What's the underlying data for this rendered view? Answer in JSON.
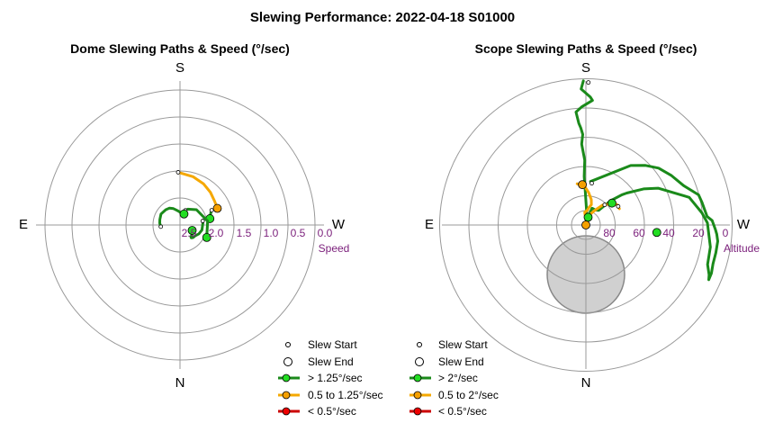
{
  "title": "Slewing Performance: 2022-04-18 S01000",
  "colors": {
    "fast": "#1a8a1a",
    "fast_marker": "#22dd22",
    "medium": "#f5a800",
    "medium_marker": "#f5a000",
    "slow": "#cc0000",
    "slow_marker": "#ee0000",
    "ring": "#999999",
    "tick": "#7b1f7b",
    "zenith": "#d0d0d0"
  },
  "chart_data": [
    {
      "type": "polar-line",
      "title": "Dome Slewing Paths & Speed (°/sec)",
      "cardinals": {
        "top": "S",
        "bottom": "N",
        "left": "E",
        "right": "W"
      },
      "radial_axis": {
        "name": "Speed",
        "range": [
          2.5,
          0.0
        ],
        "ticks": [
          "2.5",
          "2.0",
          "1.5",
          "1.0",
          "0.5",
          "0.0"
        ]
      },
      "legend": {
        "start": "Slew Start",
        "end": "Slew End",
        "fast": "> 1.25°/sec",
        "medium": "0.5 to 1.25°/sec",
        "slow": "< 0.5°/sec"
      },
      "series": [
        {
          "speed": "medium",
          "points": [
            [
              -2,
              1.69
            ],
            [
              15,
              1.74
            ],
            [
              30,
              1.79
            ],
            [
              43,
              1.84
            ],
            [
              56,
              1.89
            ],
            [
              66,
              1.91
            ]
          ]
        },
        {
          "speed": "fast",
          "points": [
            [
              65,
              2.02
            ],
            [
              68,
              2.05
            ],
            [
              73,
              2.08
            ],
            [
              78,
              2.1
            ]
          ]
        },
        {
          "speed": "fast",
          "points": [
            [
              20,
              2.38
            ],
            [
              26,
              2.34
            ],
            [
              47,
              2.25
            ],
            [
              82,
              2.15
            ],
            [
              115,
              2.12
            ]
          ]
        },
        {
          "speed": "fast",
          "points": [
            [
              80,
              2.24
            ],
            [
              84,
              2.24
            ],
            [
              103,
              2.25
            ],
            [
              115,
              2.28
            ],
            [
              125,
              2.32
            ],
            [
              134,
              2.33
            ],
            [
              139,
              2.35
            ],
            [
              137,
              2.37
            ],
            [
              130,
              2.38
            ],
            [
              114,
              2.42
            ]
          ]
        },
        {
          "speed": "fast",
          "points": [
            [
              265,
              2.31
            ],
            [
              275,
              2.29
            ],
            [
              285,
              2.28
            ],
            [
              300,
              2.26
            ],
            [
              317,
              2.28
            ],
            [
              328,
              2.3
            ],
            [
              338,
              2.34
            ],
            [
              346,
              2.38
            ],
            [
              354,
              2.41
            ],
            [
              360,
              2.43
            ],
            [
              380,
              2.45
            ]
          ]
        }
      ]
    },
    {
      "type": "polar-line",
      "title": "Scope Slewing Paths & Speed (°/sec)",
      "cardinals": {
        "top": "S",
        "bottom": "N",
        "left": "E",
        "right": "W"
      },
      "radial_axis": {
        "name": "Altitude",
        "range": [
          90,
          0
        ],
        "ticks": [
          "80",
          "60",
          "40",
          "20",
          "0"
        ]
      },
      "legend": {
        "start": "Slew Start",
        "end": "Slew End",
        "fast": "> 2°/sec",
        "medium": "0.5 to 2°/sec",
        "slow": "< 0.5°/sec"
      },
      "series": [
        {
          "speed": "fast",
          "points": [
            [
              -1,
              1
            ],
            [
              -2,
              6
            ],
            [
              2,
              11
            ],
            [
              3,
              13
            ],
            [
              -2,
              17
            ],
            [
              -5,
              20
            ],
            [
              -4,
              27
            ],
            [
              -3,
              30
            ],
            [
              -2,
              34
            ],
            [
              -3,
              40
            ],
            [
              -1,
              50
            ],
            [
              -2,
              60
            ],
            [
              -1,
              70
            ],
            [
              2,
              80
            ],
            [
              7,
              85
            ]
          ]
        },
        {
          "speed": "fast",
          "points": [
            [
              6,
              63
            ],
            [
              37,
              44
            ],
            [
              45,
              38
            ],
            [
              52,
              33
            ],
            [
              60,
              29
            ],
            [
              68,
              25
            ],
            [
              75,
              18
            ],
            [
              79,
              17
            ],
            [
              83,
              16
            ],
            [
              86,
              15
            ],
            [
              88,
              12
            ],
            [
              92,
              10
            ],
            [
              94,
              9
            ],
            [
              97,
              8
            ],
            [
              102,
              8
            ],
            [
              107,
              8
            ],
            [
              111,
              7
            ],
            [
              114,
              7
            ],
            [
              112,
              8
            ],
            [
              108,
              11
            ],
            [
              100,
              12
            ],
            [
              89,
              15
            ],
            [
              84,
              18
            ],
            [
              80,
              21
            ],
            [
              75,
              24
            ],
            [
              63,
              40
            ],
            [
              58,
              48
            ],
            [
              52,
              58
            ],
            [
              50,
              61
            ],
            [
              46,
              68
            ],
            [
              44,
              73
            ],
            [
              41,
              78
            ],
            [
              33,
              79
            ],
            [
              21,
              79
            ],
            [
              20,
              79
            ],
            [
              12,
              86
            ],
            [
              5,
              87
            ],
            [
              -5,
              89
            ]
          ]
        },
        {
          "speed": "medium",
          "points": [
            [
              -12,
              64
            ],
            [
              -2,
              66
            ],
            [
              5,
              70
            ],
            [
              12,
              74
            ],
            [
              15,
              77
            ],
            [
              10,
              79
            ],
            [
              5,
              81
            ],
            [
              -5,
              82
            ],
            [
              -3,
              86
            ],
            [
              5,
              87
            ],
            [
              14,
              86
            ],
            [
              22,
              83
            ],
            [
              30,
              80
            ],
            [
              40,
              74
            ],
            [
              51,
              69
            ],
            [
              57,
              67
            ],
            [
              64,
              67
            ]
          ]
        },
        {
          "speed": "fast",
          "points": [
            [
              10,
              84
            ],
            [
              12,
              86
            ],
            [
              18,
              87
            ],
            [
              24,
              86
            ]
          ]
        }
      ],
      "start_markers": [
        [
          1,
          2
        ],
        [
          8,
          64
        ],
        [
          43,
          73
        ],
        [
          60,
          67
        ]
      ],
      "end_markers": [
        [
          -5,
          65
        ],
        [
          50,
          69
        ],
        [
          96,
          46
        ],
        [
          16,
          85
        ],
        [
          0,
          90
        ]
      ],
      "end_marker_speeds": [
        "medium",
        "fast",
        "fast",
        "fast",
        "medium"
      ]
    }
  ]
}
